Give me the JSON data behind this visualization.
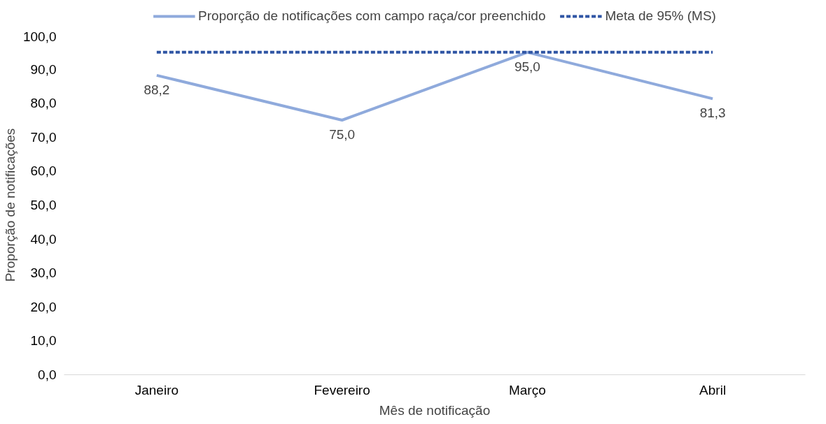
{
  "chart_data": {
    "type": "line",
    "categories": [
      "Janeiro",
      "Fevereiro",
      "Março",
      "Abril"
    ],
    "xlabel": "Mês de notificação",
    "ylabel": "Proporção de notificações",
    "ylim": [
      0,
      100
    ],
    "yticks": [
      {
        "value": 0,
        "label": "0,0"
      },
      {
        "value": 10,
        "label": "10,0"
      },
      {
        "value": 20,
        "label": "20,0"
      },
      {
        "value": 30,
        "label": "30,0"
      },
      {
        "value": 40,
        "label": "40,0"
      },
      {
        "value": 50,
        "label": "50,0"
      },
      {
        "value": 60,
        "label": "60,0"
      },
      {
        "value": 70,
        "label": "70,0"
      },
      {
        "value": 80,
        "label": "80,0"
      },
      {
        "value": 90,
        "label": "90,0"
      },
      {
        "value": 100,
        "label": "100,0"
      }
    ],
    "series": [
      {
        "name": "Proporção de notificações com campo raça/cor preenchido",
        "color": "#8faadc",
        "values": [
          88.2,
          75.0,
          95.0,
          81.3
        ],
        "value_labels": [
          "88,2",
          "75,0",
          "95,0",
          "81,3"
        ],
        "line_style": "solid"
      },
      {
        "name": "Meta de 95% (MS)",
        "color": "#2f55a4",
        "values": [
          95,
          95,
          95,
          95
        ],
        "line_style": "dashed"
      }
    ],
    "grid": false,
    "legend": "top",
    "marker": "none"
  }
}
